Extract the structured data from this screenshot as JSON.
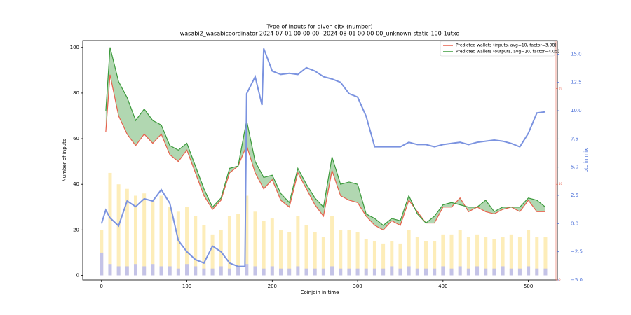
{
  "chart_data": {
    "type": "line",
    "title": "Type of inputs for given cjtx (number)",
    "subtitle": "wasabi2_wasabicoordinator 2024-07-01 00-00-00--2024-08-01 00-00-00_unknown-static-100-1utxo",
    "x_label": "Coinjoin in time",
    "y_label": "Number of inputs",
    "y2_label": "btc in mix",
    "xlim": [
      -22,
      534
    ],
    "xticks": [
      0,
      100,
      200,
      300,
      400,
      500
    ],
    "ylim": [
      -2,
      103
    ],
    "yticks": [
      0,
      20,
      40,
      60,
      80,
      100
    ],
    "y2lim": [
      -5,
      16.2
    ],
    "y2ticks": [
      {
        "value": -5,
        "label": "−5.0"
      },
      {
        "value": -2.5,
        "label": "−2.5"
      },
      {
        "value": 0,
        "label": "0.0"
      },
      {
        "value": 2.5,
        "label": "2.5"
      },
      {
        "value": 5,
        "label": "5.0"
      },
      {
        "value": 7.5,
        "label": "7.5"
      },
      {
        "value": 10,
        "label": "10.0"
      },
      {
        "value": 12.5,
        "label": "12.5"
      },
      {
        "value": 15,
        "label": "15.0"
      }
    ],
    "y3lim": [
      0,
      25
    ],
    "y3ticks": [
      0,
      10,
      20
    ],
    "legend": "upper right",
    "series": [
      {
        "name": "Predicted wallets (inputs, avg=10, factor=3.98)",
        "color": "#e8604c",
        "x": [
          5,
          10,
          20,
          30,
          40,
          50,
          60,
          70,
          80,
          90,
          100,
          110,
          120,
          130,
          140,
          150,
          160,
          170,
          180,
          190,
          200,
          210,
          220,
          230,
          240,
          250,
          260,
          270,
          280,
          290,
          300,
          310,
          320,
          330,
          340,
          350,
          360,
          370,
          380,
          390,
          400,
          410,
          420,
          430,
          440,
          450,
          460,
          470,
          480,
          490,
          500,
          510,
          520
        ],
        "values": [
          63,
          88,
          70,
          62,
          57,
          62,
          58,
          62,
          53,
          50,
          55,
          45,
          35,
          29,
          33,
          45,
          48,
          57,
          45,
          38,
          42,
          33,
          30,
          45,
          38,
          31,
          26,
          46,
          35,
          33,
          32,
          26,
          22,
          20,
          24,
          22,
          33,
          28,
          23,
          23,
          30,
          30,
          34,
          28,
          30,
          28,
          27,
          29,
          30,
          28,
          33,
          28,
          28
        ]
      },
      {
        "name": "Predicted wallets (outputs, avg=10, factor=4.05)",
        "color": "#3c9a3c",
        "x": [
          5,
          10,
          20,
          30,
          40,
          50,
          60,
          70,
          80,
          90,
          100,
          110,
          120,
          130,
          140,
          150,
          160,
          170,
          180,
          190,
          200,
          210,
          220,
          230,
          240,
          250,
          260,
          270,
          280,
          290,
          300,
          310,
          320,
          330,
          340,
          350,
          360,
          370,
          380,
          390,
          400,
          410,
          420,
          430,
          440,
          450,
          460,
          470,
          480,
          490,
          500,
          510,
          520
        ],
        "values": [
          72,
          100,
          85,
          78,
          68,
          73,
          68,
          66,
          57,
          55,
          58,
          48,
          38,
          30,
          34,
          47,
          48,
          68,
          50,
          43,
          44,
          36,
          32,
          47,
          40,
          34,
          30,
          52,
          40,
          41,
          40,
          27,
          25,
          22,
          25,
          24,
          35,
          27,
          23,
          26,
          31,
          32,
          31,
          30,
          30,
          33,
          28,
          30,
          30,
          30,
          34,
          33,
          30
        ]
      },
      {
        "color": "#7b93e0",
        "axis": "y2",
        "x": [
          0,
          5,
          10,
          20,
          30,
          40,
          50,
          60,
          70,
          80,
          90,
          100,
          110,
          120,
          130,
          140,
          150,
          160,
          168,
          170,
          180,
          188,
          190,
          200,
          210,
          220,
          230,
          240,
          250,
          260,
          270,
          280,
          290,
          300,
          310,
          320,
          330,
          340,
          350,
          360,
          370,
          380,
          390,
          400,
          410,
          420,
          430,
          440,
          450,
          460,
          470,
          480,
          490,
          500,
          510,
          520
        ],
        "values": [
          0,
          1.2,
          0.5,
          -0.2,
          2.0,
          1.5,
          2.2,
          2.0,
          3.0,
          1.8,
          -1.5,
          -2.5,
          -3.2,
          -3.5,
          -2.0,
          -2.5,
          -3.5,
          -3.8,
          -3.8,
          11.5,
          13.0,
          10.5,
          15.5,
          13.5,
          13.2,
          13.3,
          13.2,
          13.8,
          13.5,
          13.0,
          12.8,
          12.5,
          11.5,
          11.2,
          9.5,
          6.8,
          6.8,
          6.8,
          6.8,
          7.2,
          7.0,
          7.0,
          6.8,
          7.0,
          7.1,
          7.2,
          7.0,
          7.2,
          7.3,
          7.4,
          7.3,
          7.1,
          6.8,
          8.0,
          9.8,
          9.9
        ]
      }
    ],
    "bars": [
      {
        "color": "#fde9a8",
        "x": [
          0,
          10,
          20,
          30,
          40,
          50,
          60,
          70,
          80,
          90,
          100,
          110,
          120,
          130,
          140,
          150,
          160,
          170,
          180,
          190,
          200,
          210,
          220,
          230,
          240,
          250,
          260,
          270,
          280,
          290,
          300,
          310,
          320,
          330,
          340,
          350,
          360,
          370,
          380,
          390,
          400,
          410,
          420,
          430,
          440,
          450,
          460,
          470,
          480,
          490,
          500,
          510,
          520
        ],
        "values": [
          20,
          45,
          40,
          38,
          35,
          36,
          33,
          35,
          30,
          28,
          30,
          26,
          22,
          18,
          20,
          26,
          27,
          35,
          28,
          24,
          25,
          20,
          19,
          26,
          22,
          19,
          17,
          26,
          20,
          20,
          19,
          16,
          15,
          14,
          15,
          14,
          20,
          17,
          15,
          15,
          18,
          18,
          20,
          17,
          18,
          17,
          16,
          17,
          18,
          17,
          20,
          17,
          17
        ]
      },
      {
        "color": "#b5b8f3",
        "x": [
          0,
          10,
          20,
          30,
          40,
          50,
          60,
          70,
          80,
          90,
          100,
          110,
          120,
          130,
          140,
          150,
          160,
          170,
          180,
          190,
          200,
          210,
          220,
          230,
          240,
          250,
          260,
          270,
          280,
          290,
          300,
          310,
          320,
          330,
          340,
          350,
          360,
          370,
          380,
          390,
          400,
          410,
          420,
          430,
          440,
          450,
          460,
          470,
          480,
          490,
          500,
          510,
          520
        ],
        "values": [
          10,
          5,
          4,
          4,
          5,
          4,
          5,
          4,
          4,
          3,
          5,
          4,
          3,
          3,
          4,
          3,
          4,
          5,
          4,
          3,
          4,
          3,
          3,
          4,
          3,
          3,
          3,
          4,
          3,
          3,
          3,
          3,
          3,
          3,
          4,
          3,
          4,
          3,
          3,
          3,
          4,
          3,
          4,
          3,
          4,
          3,
          3,
          4,
          3,
          3,
          4,
          3,
          3
        ]
      }
    ]
  }
}
